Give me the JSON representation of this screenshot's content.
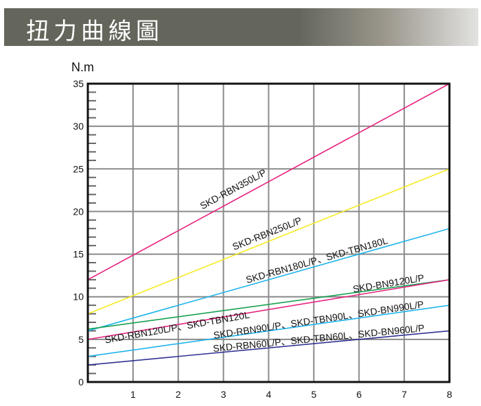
{
  "header": {
    "title": "扭力曲線圖"
  },
  "chart_data": {
    "type": "line",
    "title": "扭力曲線圖",
    "ylabel": "N.m",
    "xlabel": "",
    "xlim": [
      0,
      8
    ],
    "ylim": [
      0,
      35
    ],
    "x_ticks": [
      "1",
      "2",
      "3",
      "4",
      "5",
      "6",
      "7",
      "8"
    ],
    "y_ticks": [
      "0",
      "5",
      "10",
      "15",
      "20",
      "25",
      "30",
      "35"
    ],
    "grid": true,
    "series": [
      {
        "name": "SKD-RBN350L/P",
        "color": "#e8207e",
        "x": [
          0,
          8
        ],
        "values": [
          12,
          35
        ]
      },
      {
        "name": "SKD-RBN250L/P",
        "color": "#f5ea20",
        "x": [
          0,
          8
        ],
        "values": [
          8,
          25
        ]
      },
      {
        "name": "SKD-RBN180L/P、SKD-TBN180L",
        "color": "#1cb4ec",
        "x": [
          0,
          8
        ],
        "values": [
          6,
          18
        ]
      },
      {
        "name": "SKD-BN9120L/P",
        "color": "#17a050",
        "x": [
          0,
          8
        ],
        "values": [
          6.2,
          12
        ]
      },
      {
        "name": "SKD-RBN120L/P、SKD-TBN120L",
        "color": "#e8207e",
        "x": [
          0,
          8
        ],
        "values": [
          5,
          12
        ]
      },
      {
        "name": "SKD-RBN90L/P、SKD-TBN90L、SKD-BN990L/P",
        "color": "#1cb4ec",
        "x": [
          0,
          8
        ],
        "values": [
          3,
          9
        ]
      },
      {
        "name": "SKD-RBN60L/P、SKD-TBN60L、SKD-BN960L/P",
        "color": "#2e3192",
        "x": [
          0,
          8
        ],
        "values": [
          2,
          6
        ]
      }
    ]
  }
}
